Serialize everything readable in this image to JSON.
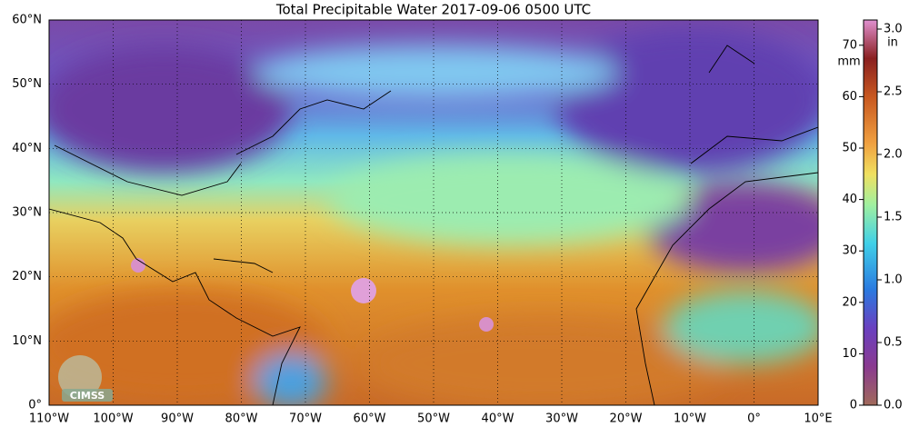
{
  "title": "Total Precipitable Water  2017-09-06 0500 UTC",
  "lat_labels": [
    "60°N",
    "50°N",
    "40°N",
    "30°N",
    "20°N",
    "10°N",
    "0°"
  ],
  "lon_labels": [
    "110°W",
    "100°W",
    "90°W",
    "80°W",
    "70°W",
    "60°W",
    "50°W",
    "40°W",
    "30°W",
    "20°W",
    "10°W",
    "0°",
    "10°E"
  ],
  "colorbar": {
    "mm_unit": "mm",
    "mm_ticks": [
      0,
      10,
      20,
      30,
      40,
      50,
      60,
      70
    ],
    "in_unit": "in",
    "in_ticks": [
      "0.0",
      "0.5",
      "1.0",
      "1.5",
      "2.0",
      "2.5",
      "3.0"
    ]
  },
  "logo": "CIMSS"
}
